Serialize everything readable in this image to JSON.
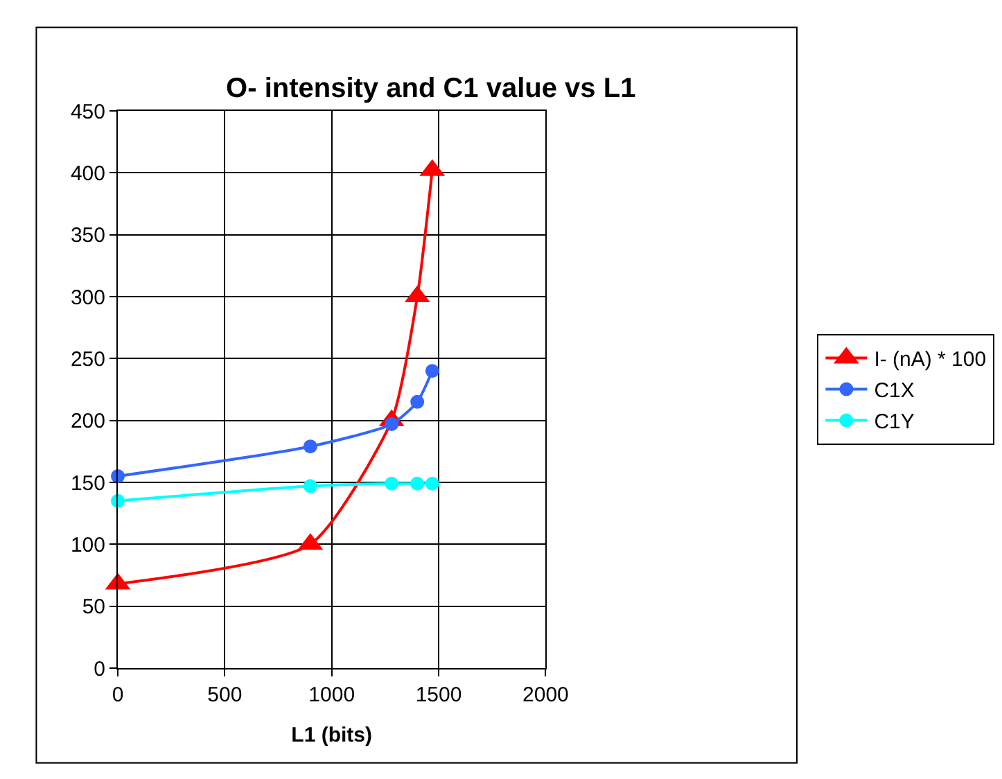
{
  "chart_data": {
    "type": "line",
    "title": "O- intensity and C1 value vs L1",
    "xlabel": "L1 (bits)",
    "x": [
      0,
      900,
      1280,
      1400,
      1470
    ],
    "series": [
      {
        "name": "I- (nA) * 100",
        "color": "#ff0000",
        "marker": "triangle",
        "values": [
          68,
          100,
          200,
          300,
          402
        ]
      },
      {
        "name": "C1X",
        "color": "#3366ff",
        "marker": "circle",
        "values": [
          155,
          179,
          197,
          215,
          240
        ]
      },
      {
        "name": "C1Y",
        "color": "#00ffff",
        "marker": "circle",
        "values": [
          135,
          147,
          149,
          149,
          149
        ]
      }
    ],
    "xlim": [
      0,
      2000
    ],
    "xticks": [
      0,
      500,
      1000,
      1500,
      2000
    ],
    "ylim": [
      0,
      450
    ],
    "yticks": [
      0,
      50,
      100,
      150,
      200,
      250,
      300,
      350,
      400,
      450
    ],
    "grid": true,
    "legend": "right",
    "line_style": "solid"
  }
}
